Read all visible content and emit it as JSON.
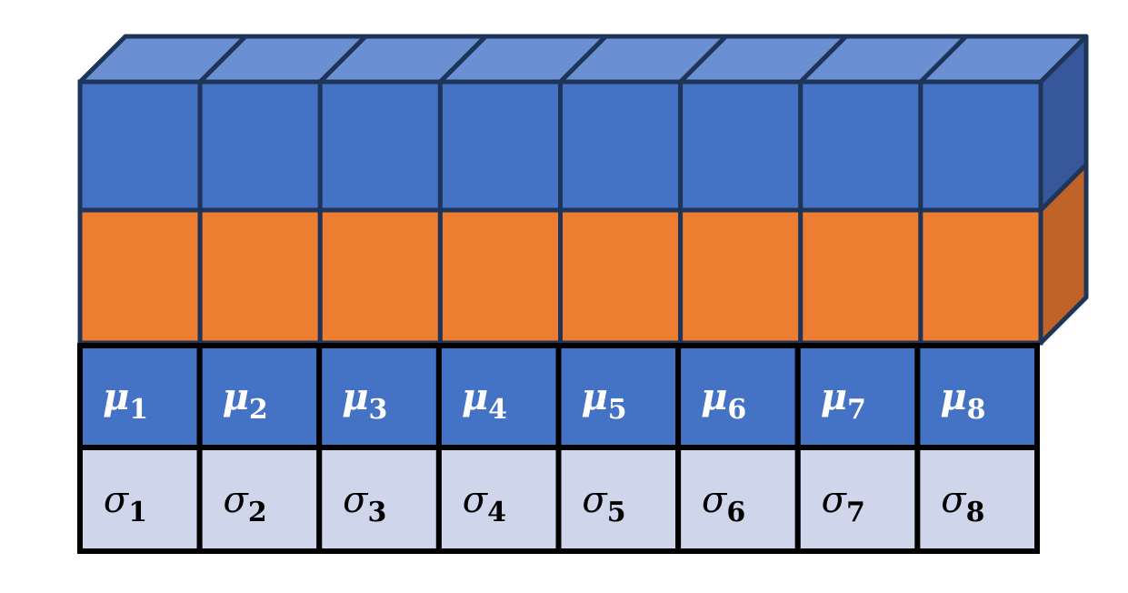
{
  "colors": {
    "blue_face": "#4472c4",
    "blue_top": "#6a8fd3",
    "blue_side": "#36589b",
    "orange_face": "#ed7d31",
    "orange_side": "#bf6328",
    "outline_3d": "#1f3459",
    "outline_table": "#000000",
    "mu_cell": "#4472c4",
    "sigma_cell": "#cfd5ea",
    "mu_text": "#ffffff",
    "sigma_text": "#000000"
  },
  "block": {
    "columns": 8,
    "rows": [
      "blue",
      "orange"
    ]
  },
  "table": {
    "mu_row": [
      {
        "symbol": "μ",
        "sub": "1"
      },
      {
        "symbol": "μ",
        "sub": "2"
      },
      {
        "symbol": "μ",
        "sub": "3"
      },
      {
        "symbol": "μ",
        "sub": "4"
      },
      {
        "symbol": "μ",
        "sub": "5"
      },
      {
        "symbol": "μ",
        "sub": "6"
      },
      {
        "symbol": "μ",
        "sub": "7"
      },
      {
        "symbol": "μ",
        "sub": "8"
      }
    ],
    "sigma_row": [
      {
        "symbol": "σ",
        "sub": "1"
      },
      {
        "symbol": "σ",
        "sub": "2"
      },
      {
        "symbol": "σ",
        "sub": "3"
      },
      {
        "symbol": "σ",
        "sub": "4"
      },
      {
        "symbol": "σ",
        "sub": "5"
      },
      {
        "symbol": "σ",
        "sub": "6"
      },
      {
        "symbol": "σ",
        "sub": "7"
      },
      {
        "symbol": "σ",
        "sub": "8"
      }
    ]
  }
}
